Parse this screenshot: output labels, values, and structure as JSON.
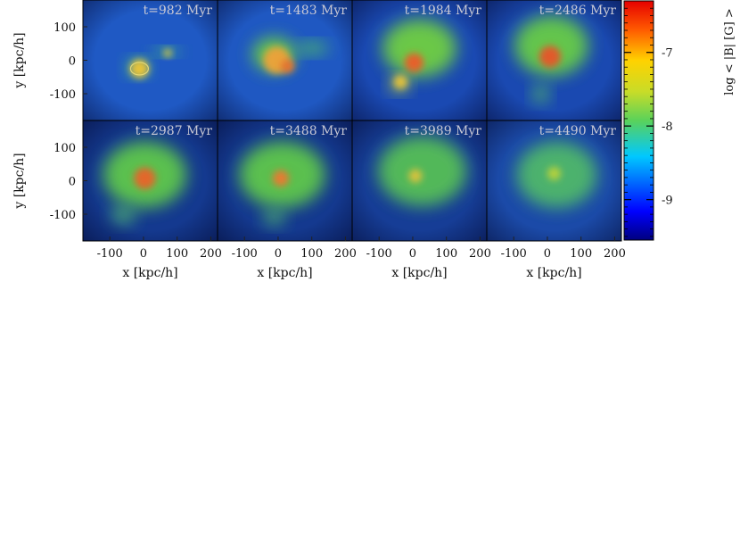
{
  "chart_data": {
    "type": "heatmap",
    "figure_kind": "simulation-snapshots-grid",
    "rows": 2,
    "cols": 4,
    "panels": [
      {
        "label": "t=982 Myr",
        "time_myr": 982
      },
      {
        "label": "t=1483 Myr",
        "time_myr": 1483
      },
      {
        "label": "t=1984 Myr",
        "time_myr": 1984
      },
      {
        "label": "t=2486 Myr",
        "time_myr": 2486
      },
      {
        "label": "t=2987 Myr",
        "time_myr": 2987
      },
      {
        "label": "t=3488 Myr",
        "time_myr": 3488
      },
      {
        "label": "t=3989 Myr",
        "time_myr": 3989
      },
      {
        "label": "t=4490 Myr",
        "time_myr": 4490
      }
    ],
    "xlabel": "x [kpc/h]",
    "ylabel": "y [kpc/h]",
    "xlim": [
      -180,
      220
    ],
    "ylim": [
      -180,
      180
    ],
    "xticks": [
      -100,
      0,
      100,
      200
    ],
    "xtick_labels": [
      "-100",
      "0",
      "100",
      "200"
    ],
    "yticks": [
      100,
      0,
      -100
    ],
    "ytick_labels": [
      "100",
      "0",
      "-100"
    ],
    "colorbar": {
      "label": "log < |B| [G] >",
      "range": [
        -9.55,
        -6.3
      ],
      "ticks": [
        -7,
        -8,
        -9
      ],
      "tick_labels": [
        "-7",
        "-8",
        "-9"
      ],
      "colormap": "jet"
    }
  }
}
